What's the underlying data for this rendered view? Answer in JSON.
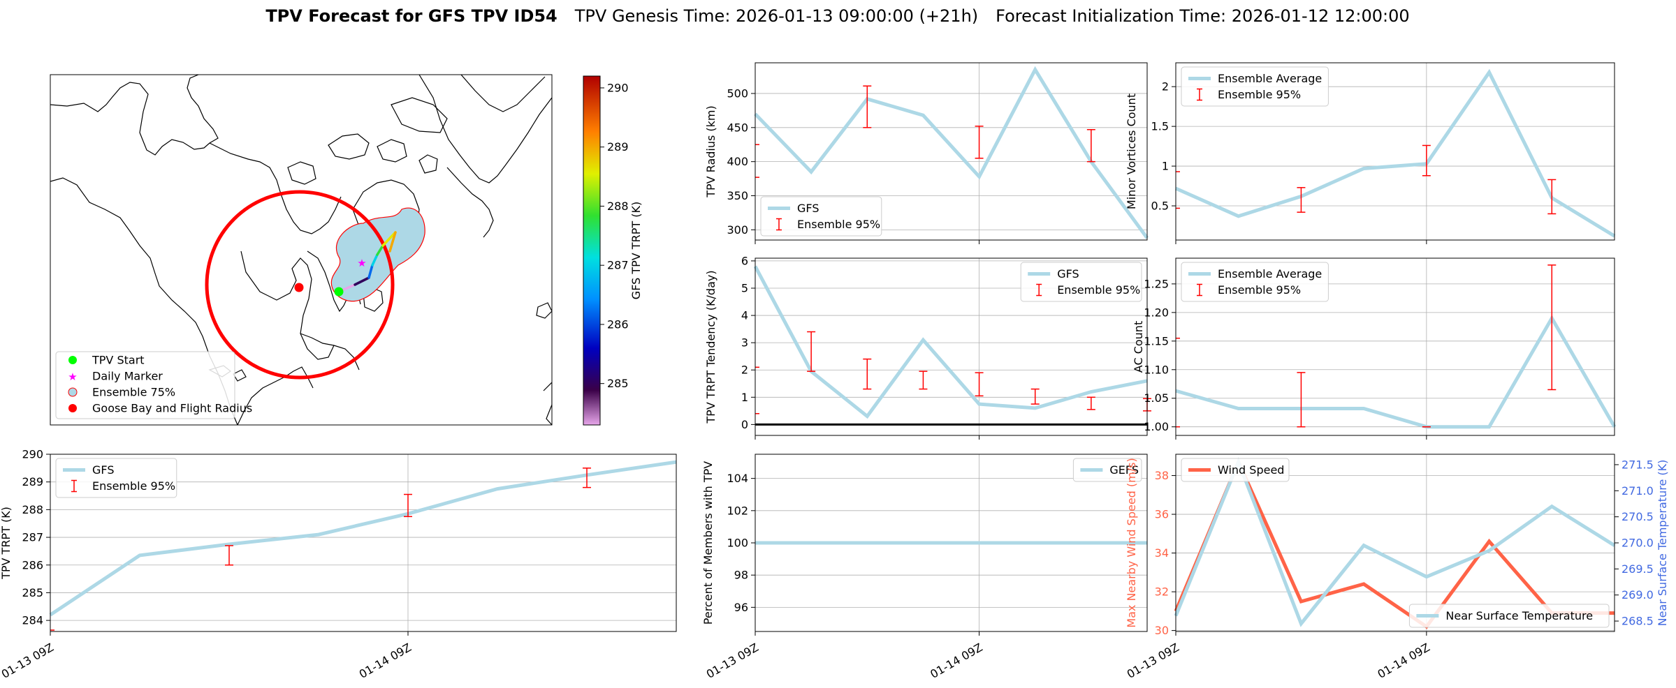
{
  "title": {
    "bold": "TPV Forecast for GFS TPV ID54",
    "genesis": "TPV Genesis Time: 2026-01-13 09:00:00 (+21h)",
    "init": "Forecast Initialization Time: 2026-01-12 12:00:00"
  },
  "colors": {
    "series": "#add8e6",
    "errorbar": "#ff0000",
    "wind": "#ff6347",
    "temp_axis": "#4169e1",
    "goose": "#ff0000",
    "start": "#00ff00",
    "daily": "#ff00ff"
  },
  "map": {
    "legend": [
      {
        "label": "TPV Start",
        "icon": "green-dot"
      },
      {
        "label": "Daily Marker",
        "icon": "magenta-star"
      },
      {
        "label": "Ensemble 75%",
        "icon": "blue-circle-red-edge"
      },
      {
        "label": "Goose Bay and Flight Radius",
        "icon": "red-dot"
      }
    ],
    "colorbar": {
      "label": "GFS TPV TRPT (K)",
      "ticks": [
        285,
        286,
        287,
        288,
        289,
        290
      ],
      "min": 284.3,
      "max": 290.2
    },
    "track_temps": [
      284.2,
      285.0,
      286.2,
      287.0,
      287.8,
      288.6,
      289.0,
      289.5
    ]
  },
  "chart_data": [
    {
      "id": "trpt",
      "type": "line",
      "ylabel": "TPV TRPT (K)",
      "ylim": [
        283.6,
        290
      ],
      "yticks": [
        284,
        285,
        286,
        287,
        288,
        289,
        290
      ],
      "xticks": [
        {
          "x": 0,
          "label": "01-13 09Z"
        },
        {
          "x": 8,
          "label": "01-14 09Z"
        }
      ],
      "xlim": [
        0,
        14
      ],
      "series": [
        {
          "name": "GFS",
          "x": [
            0,
            2,
            4,
            6,
            8,
            10,
            12,
            14
          ],
          "y": [
            284.2,
            286.35,
            286.75,
            287.1,
            287.85,
            288.75,
            289.25,
            289.72
          ]
        }
      ],
      "errorbars": [
        {
          "x": 4,
          "lo": 286.0,
          "hi": 286.7
        },
        {
          "x": 8,
          "lo": 287.75,
          "hi": 288.55
        },
        {
          "x": 12,
          "lo": 288.8,
          "hi": 289.5
        }
      ],
      "edge_ticks": [
        283.65
      ],
      "legend": [
        "GFS",
        "Ensemble 95%"
      ],
      "legend_loc": "upper-left"
    },
    {
      "id": "radius",
      "type": "line",
      "ylabel": "TPV Radius (km)",
      "ylim": [
        285,
        545
      ],
      "yticks": [
        300,
        350,
        400,
        450,
        500
      ],
      "xticks": [
        {
          "x": 0,
          "label": ""
        },
        {
          "x": 8,
          "label": ""
        }
      ],
      "xlim": [
        0,
        14
      ],
      "series": [
        {
          "name": "GFS",
          "x": [
            0,
            2,
            4,
            6,
            8,
            10,
            12,
            14
          ],
          "y": [
            470,
            385,
            492,
            468,
            378,
            535,
            400,
            288
          ]
        }
      ],
      "errorbars": [
        {
          "x": 4,
          "lo": 450,
          "hi": 511
        },
        {
          "x": 8,
          "lo": 405,
          "hi": 452
        },
        {
          "x": 12,
          "lo": 400,
          "hi": 447
        }
      ],
      "edge_ticks": [
        425,
        377
      ],
      "legend": [
        "GFS",
        "Ensemble 95%"
      ],
      "legend_loc": "lower-left"
    },
    {
      "id": "tendency",
      "type": "line",
      "ylabel": "TPV TRPT Tendency (K/day)",
      "ylim": [
        -0.4,
        6.1
      ],
      "yticks": [
        0,
        1,
        2,
        3,
        4,
        5,
        6
      ],
      "xticks": [
        {
          "x": 0,
          "label": ""
        },
        {
          "x": 8,
          "label": ""
        }
      ],
      "xlim": [
        0,
        14
      ],
      "zero_line": true,
      "series": [
        {
          "name": "GFS",
          "x": [
            0,
            2,
            4,
            6,
            8,
            10,
            12,
            14
          ],
          "y": [
            5.8,
            1.95,
            0.3,
            3.1,
            0.75,
            0.6,
            1.2,
            1.6
          ]
        }
      ],
      "errorbars": [
        {
          "x": 2,
          "lo": 1.95,
          "hi": 3.4
        },
        {
          "x": 4,
          "lo": 1.3,
          "hi": 2.4
        },
        {
          "x": 6,
          "lo": 1.3,
          "hi": 1.95
        },
        {
          "x": 8,
          "lo": 1.05,
          "hi": 1.9
        },
        {
          "x": 10,
          "lo": 0.75,
          "hi": 1.3
        },
        {
          "x": 12,
          "lo": 0.55,
          "hi": 1.0
        },
        {
          "x": 14,
          "lo": 0.5,
          "hi": 0.95
        }
      ],
      "edge_ticks": [
        2.1,
        0.4
      ],
      "legend": [
        "GFS",
        "Ensemble 95%"
      ],
      "legend_loc": "upper-right"
    },
    {
      "id": "members",
      "type": "line",
      "ylabel": "Percent of Members with TPV",
      "ylim": [
        94.5,
        105.5
      ],
      "yticks": [
        96,
        98,
        100,
        102,
        104
      ],
      "xticks": [
        {
          "x": 0,
          "label": "01-13 09Z"
        },
        {
          "x": 8,
          "label": "01-14 09Z"
        }
      ],
      "xlim": [
        0,
        14
      ],
      "series": [
        {
          "name": "GEFS",
          "x": [
            0,
            14
          ],
          "y": [
            100,
            100
          ]
        }
      ],
      "errorbars": [],
      "legend": [
        "GEFS"
      ],
      "legend_loc": "upper-right"
    },
    {
      "id": "minor",
      "type": "line",
      "ylabel": "Minor Vortices Count",
      "ylim": [
        0.07,
        2.3
      ],
      "yticks": [
        0.5,
        1.0,
        1.5,
        2.0
      ],
      "xticks": [
        {
          "x": 0,
          "label": ""
        },
        {
          "x": 8,
          "label": ""
        }
      ],
      "xlim": [
        0,
        14
      ],
      "series": [
        {
          "name": "Ensemble Average",
          "x": [
            0,
            2,
            4,
            6,
            8,
            10,
            12,
            14
          ],
          "y": [
            0.72,
            0.37,
            0.62,
            0.97,
            1.03,
            2.18,
            0.6,
            0.12
          ]
        }
      ],
      "errorbars": [
        {
          "x": 4,
          "lo": 0.42,
          "hi": 0.73
        },
        {
          "x": 8,
          "lo": 0.88,
          "hi": 1.26
        },
        {
          "x": 12,
          "lo": 0.4,
          "hi": 0.83
        }
      ],
      "edge_ticks": [
        0.93,
        0.47
      ],
      "legend": [
        "Ensemble Average",
        "Ensemble 95%"
      ],
      "legend_loc": "upper-left"
    },
    {
      "id": "ac",
      "type": "line",
      "ylabel": "AC Count",
      "ylim": [
        0.985,
        1.295
      ],
      "yticks": [
        1.0,
        1.05,
        1.1,
        1.15,
        1.2,
        1.25
      ],
      "yticks_fmt": 2,
      "xticks": [
        {
          "x": 0,
          "label": ""
        },
        {
          "x": 8,
          "label": ""
        }
      ],
      "xlim": [
        0,
        14
      ],
      "series": [
        {
          "name": "Ensemble Average",
          "x": [
            0,
            2,
            4,
            6,
            8,
            10,
            12,
            14
          ],
          "y": [
            1.063,
            1.032,
            1.032,
            1.032,
            1.0,
            1.0,
            1.19,
            1.0
          ]
        }
      ],
      "errorbars": [
        {
          "x": 4,
          "lo": 1.0,
          "hi": 1.095
        },
        {
          "x": 8,
          "lo": 1.0,
          "hi": 1.0
        },
        {
          "x": 12,
          "lo": 1.065,
          "hi": 1.283
        }
      ],
      "edge_ticks": [
        1.155,
        1.0
      ],
      "legend": [
        "Ensemble Average",
        "Ensemble 95%"
      ],
      "legend_loc": "upper-left"
    },
    {
      "id": "wind",
      "type": "line",
      "ylabel": "Max Nearby Wind Speed (m/s)",
      "ylabel2": "Near Surface Temperature (K)",
      "ylim": [
        29.95,
        39.1
      ],
      "ylim2": [
        268.3,
        271.7
      ],
      "yticks": [
        30,
        32,
        34,
        36,
        38
      ],
      "yticks2": [
        268.5,
        269.0,
        269.5,
        270.0,
        270.5,
        271.0,
        271.5
      ],
      "xticks": [
        {
          "x": 0,
          "label": "01-13 09Z"
        },
        {
          "x": 8,
          "label": "01-14 09Z"
        }
      ],
      "xlim": [
        0,
        14
      ],
      "series": [
        {
          "name": "Wind Speed",
          "x": [
            0,
            2,
            4,
            6,
            8,
            10,
            12,
            14
          ],
          "y": [
            31.0,
            38.7,
            31.5,
            32.4,
            30.2,
            34.6,
            30.9,
            30.9
          ]
        }
      ],
      "series2": [
        {
          "name": "Near Surface Temperature",
          "x": [
            0,
            2,
            4,
            6,
            8,
            10,
            12,
            14
          ],
          "y": [
            268.6,
            271.55,
            268.45,
            269.95,
            269.35,
            269.85,
            270.7,
            269.95
          ]
        }
      ],
      "legend": [
        "Wind Speed"
      ],
      "legend2": [
        "Near Surface Temperature"
      ],
      "legend_loc": "upper-left"
    }
  ]
}
